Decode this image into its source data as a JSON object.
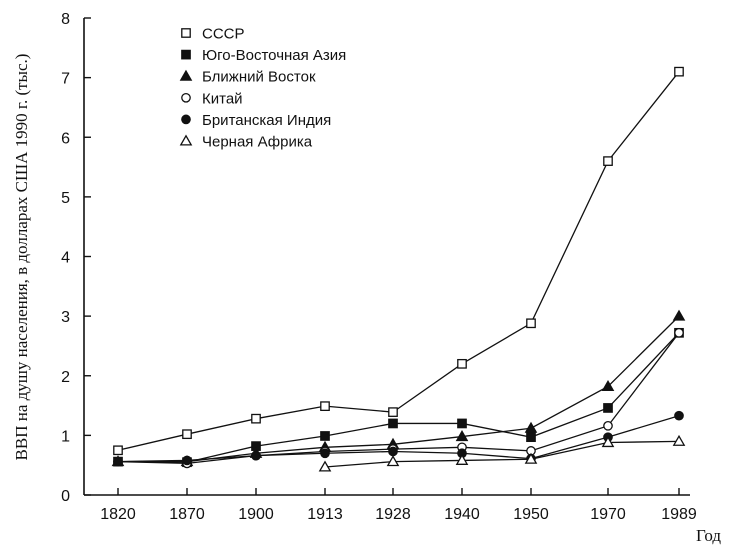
{
  "chart_data": {
    "type": "line",
    "xlabel": "Год",
    "ylabel": "ВВП на душу населения, в долларах США 1990 г. (тыс.)",
    "categories": [
      "1820",
      "1870",
      "1900",
      "1913",
      "1928",
      "1940",
      "1950",
      "1970",
      "1989"
    ],
    "ylim": [
      0,
      8
    ],
    "yticks": [
      0,
      1,
      2,
      3,
      4,
      5,
      6,
      7,
      8
    ],
    "legend_position": "top-left",
    "series": [
      {
        "name": "СССР",
        "marker": "square-open",
        "values": [
          0.75,
          1.02,
          1.28,
          1.49,
          1.39,
          2.2,
          2.88,
          5.6,
          7.1
        ]
      },
      {
        "name": "Юго-Восточная Азия",
        "marker": "square-filled",
        "values": [
          0.56,
          0.55,
          0.82,
          0.99,
          1.2,
          1.2,
          0.97,
          1.46,
          2.72
        ]
      },
      {
        "name": "Ближний Восток",
        "marker": "triangle-filled",
        "values": [
          0.56,
          0.56,
          0.7,
          0.8,
          0.85,
          0.98,
          1.12,
          1.82,
          3.0
        ]
      },
      {
        "name": "Китай",
        "marker": "circle-open",
        "values": [
          0.56,
          0.53,
          0.66,
          0.73,
          0.77,
          0.8,
          0.74,
          1.16,
          2.72
        ]
      },
      {
        "name": "Британская Индия",
        "marker": "circle-filled",
        "values": [
          0.56,
          0.58,
          0.66,
          0.7,
          0.73,
          0.7,
          0.61,
          0.97,
          1.33
        ]
      },
      {
        "name": "Черная Африка",
        "marker": "triangle-open",
        "values": [
          null,
          null,
          null,
          0.47,
          0.56,
          0.58,
          0.6,
          0.88,
          0.9
        ]
      }
    ]
  }
}
